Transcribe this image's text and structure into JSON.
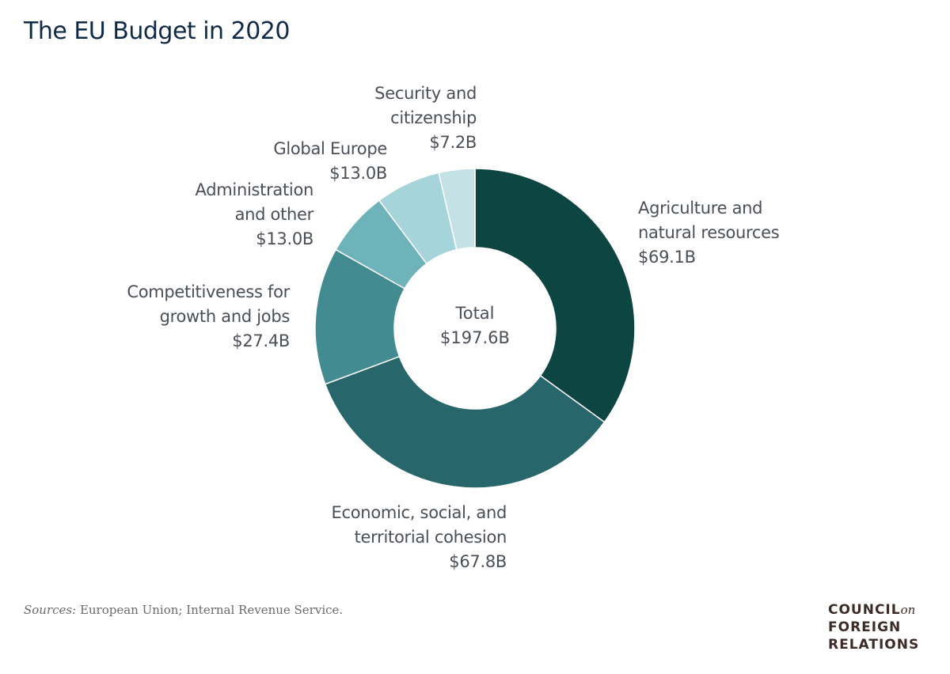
{
  "chart_data": {
    "type": "pie",
    "title": "The EU Budget in 2020",
    "center_label": {
      "line1": "Total",
      "line2": "$197.6B"
    },
    "slices": [
      {
        "label_lines": [
          "Agriculture and",
          "natural resources"
        ],
        "value_label": "$69.1B",
        "value": 69.1,
        "color": "#0d4543"
      },
      {
        "label_lines": [
          "Economic, social, and",
          "territorial cohesion"
        ],
        "value_label": "$67.8B",
        "value": 67.8,
        "color": "#27676b"
      },
      {
        "label_lines": [
          "Competitiveness for",
          "growth and jobs"
        ],
        "value_label": "$27.4B",
        "value": 27.4,
        "color": "#418b91"
      },
      {
        "label_lines": [
          "Administration",
          "and other"
        ],
        "value_label": "$13.0B",
        "value": 13.0,
        "color": "#6db3b9"
      },
      {
        "label_lines": [
          "Global Europe"
        ],
        "value_label": "$13.0B",
        "value": 13.0,
        "color": "#a5d4da"
      },
      {
        "label_lines": [
          "Security and",
          "citizenship"
        ],
        "value_label": "$7.2B",
        "value": 7.2,
        "color": "#c4e2e6"
      }
    ]
  },
  "source": {
    "prefix": "Sources:",
    "text": " European Union; Internal Revenue Service."
  },
  "logo": {
    "line1": "COUNCIL",
    "on": "on",
    "line2": "FOREIGN",
    "line3": "RELATIONS"
  }
}
